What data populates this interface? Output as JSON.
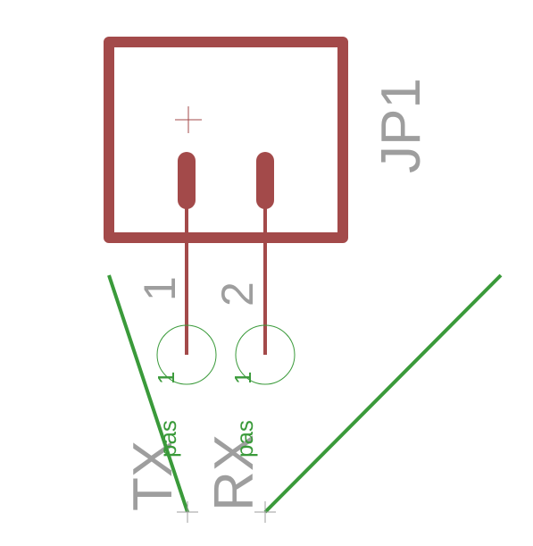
{
  "part": {
    "designator": "JP1",
    "pins": [
      {
        "number": "1",
        "net": "TX",
        "function": "pas",
        "swap": "1"
      },
      {
        "number": "2",
        "net": "RX",
        "function": "pas",
        "swap": "1"
      }
    ]
  },
  "colors": {
    "background": "#ffffff",
    "symbol": "#a34a4a",
    "wire": "#3a9a3a",
    "pin_attribute": "#3a9a3a",
    "label": "#9e9e9e"
  }
}
